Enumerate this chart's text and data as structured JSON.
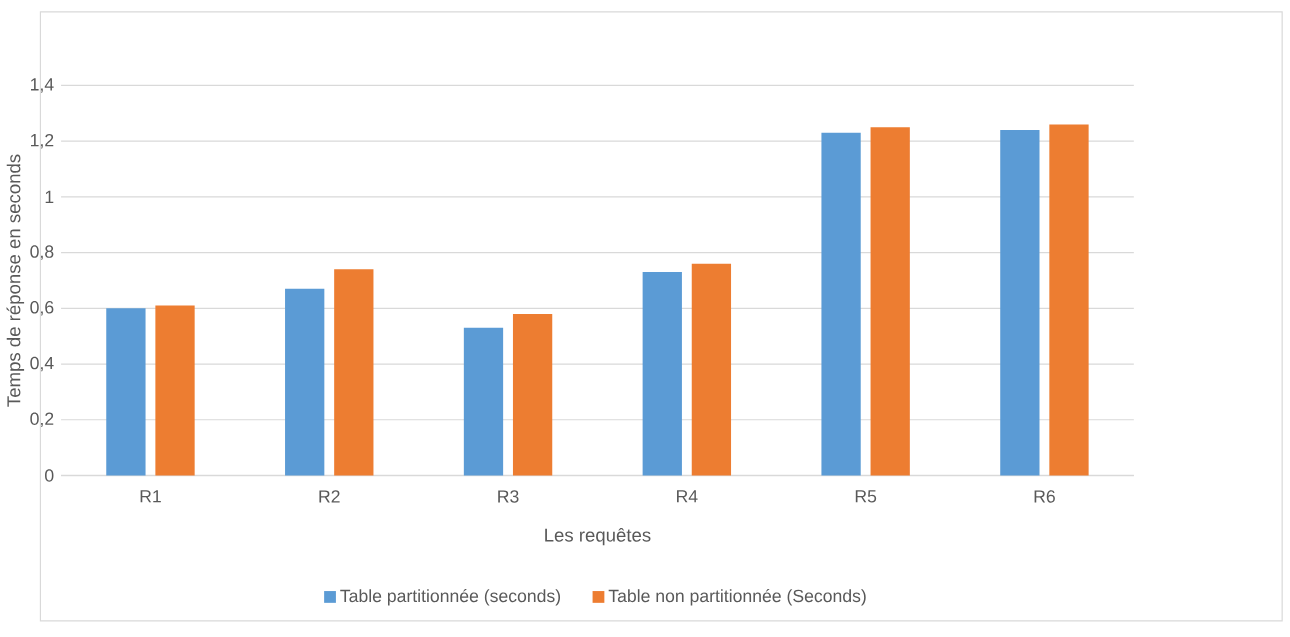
{
  "chart_data": {
    "type": "bar",
    "xlabel": "Les requêtes",
    "ylabel": "Temps de réponse en seconds",
    "categories": [
      "R1",
      "R2",
      "R3",
      "R4",
      "R5",
      "R6"
    ],
    "series": [
      {
        "name": "Table partitionnée (seconds)",
        "color": "#5b9bd5",
        "values": [
          0.6,
          0.67,
          0.53,
          0.73,
          1.23,
          1.24
        ]
      },
      {
        "name": "Table non partitionnée (Seconds)",
        "color": "#ed7d31",
        "values": [
          0.61,
          0.74,
          0.58,
          0.76,
          1.25,
          1.26
        ]
      }
    ],
    "ylim": [
      0,
      1.4
    ],
    "yticks": [
      0,
      {
        "value": 0.2,
        "label": "0,2"
      },
      {
        "value": 0.4,
        "label": "0,4"
      },
      {
        "value": 0.6,
        "label": "0,6"
      },
      {
        "value": 0.8,
        "label": "0,8"
      },
      1,
      {
        "value": 1.2,
        "label": "1,2"
      },
      {
        "value": 1.4,
        "label": "1,4"
      }
    ],
    "grid": "y",
    "legend": "bottom"
  }
}
